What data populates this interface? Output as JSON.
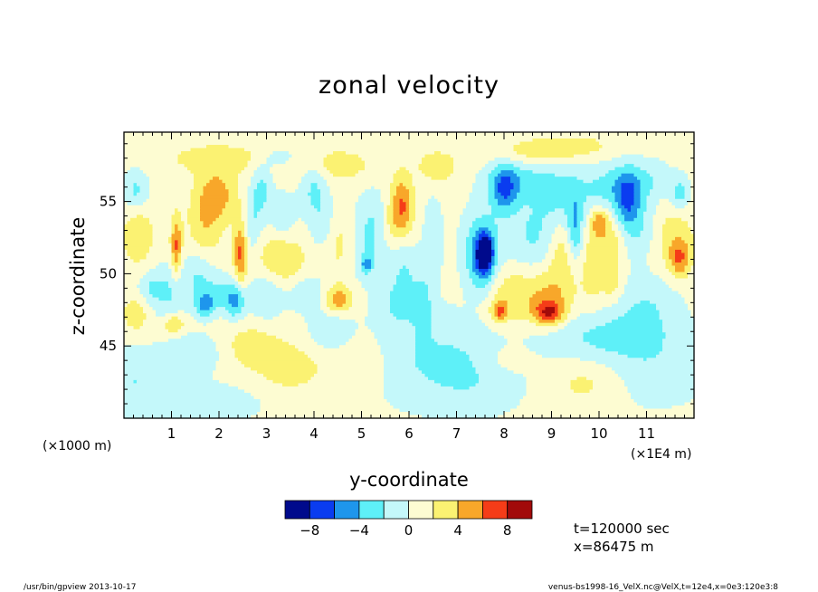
{
  "chart_data": {
    "type": "heatmap",
    "title": "zonal velocity",
    "xlabel": "y-coordinate",
    "ylabel": "z-coordinate",
    "x_unit_left": "(×1000 m)",
    "x_unit_right": "(×1E4 m)",
    "xlim": [
      0,
      12
    ],
    "ylim": [
      40,
      59.8
    ],
    "x_ticks": [
      1,
      2,
      3,
      4,
      5,
      6,
      7,
      8,
      9,
      10,
      11
    ],
    "x_tick_labels": [
      "1",
      "2",
      "3",
      "4",
      "5",
      "6",
      "7",
      "8",
      "9",
      "10",
      "11"
    ],
    "y_ticks": [
      45,
      50,
      55
    ],
    "y_tick_labels": [
      "45",
      "50",
      "55"
    ],
    "color_levels": [
      -10,
      -8,
      -6,
      -4,
      -2,
      0,
      2,
      4,
      6,
      8,
      10
    ],
    "colors": [
      "#000a8c",
      "#0a3cf0",
      "#1e96ec",
      "#5ef0f8",
      "#c4f8fa",
      "#fdfcd2",
      "#fbf272",
      "#f8a72a",
      "#f53c18",
      "#a20a0a"
    ],
    "colorbar_labels": [
      "−8",
      "−4",
      "0",
      "4",
      "8"
    ],
    "colorbar_label_values": [
      -8,
      -4,
      0,
      4,
      8
    ],
    "background_value": 0.8,
    "features": [
      {
        "y": 0.25,
        "z": 55.8,
        "v": -3.2,
        "sy": 0.18,
        "sz": 1.0
      },
      {
        "y": 0.3,
        "z": 52.6,
        "v": 3.2,
        "sy": 0.22,
        "sz": 1.3
      },
      {
        "y": 0.55,
        "z": 49.0,
        "v": -2.4,
        "sy": 0.2,
        "sz": 0.8
      },
      {
        "y": 0.25,
        "z": 47.2,
        "v": 2.6,
        "sy": 0.2,
        "sz": 0.9
      },
      {
        "y": 0.2,
        "z": 43.0,
        "v": -2.6,
        "sy": 0.45,
        "sz": 1.5
      },
      {
        "y": 1.1,
        "z": 51.8,
        "v": 5.6,
        "sy": 0.08,
        "sz": 1.5
      },
      {
        "y": 0.95,
        "z": 48.6,
        "v": -2.8,
        "sy": 0.25,
        "sz": 1.5
      },
      {
        "y": 1.05,
        "z": 46.5,
        "v": 4.2,
        "sy": 0.16,
        "sz": 0.5
      },
      {
        "y": 1.5,
        "z": 44.5,
        "v": -2.4,
        "sy": 0.4,
        "sz": 1.0
      },
      {
        "y": 1.95,
        "z": 55.5,
        "v": 4.2,
        "sy": 0.3,
        "sz": 1.3
      },
      {
        "y": 1.7,
        "z": 53.2,
        "v": 2.6,
        "sy": 0.25,
        "sz": 1.5
      },
      {
        "y": 2.45,
        "z": 51.5,
        "v": 5.6,
        "sy": 0.1,
        "sz": 1.6
      },
      {
        "y": 1.55,
        "z": 50.0,
        "v": -2.6,
        "sy": 0.25,
        "sz": 1.2
      },
      {
        "y": 1.7,
        "z": 47.8,
        "v": -4.4,
        "sy": 0.15,
        "sz": 0.6
      },
      {
        "y": 2.35,
        "z": 48.0,
        "v": -4.4,
        "sy": 0.14,
        "sz": 0.8
      },
      {
        "y": 2.05,
        "z": 48.6,
        "v": -3.0,
        "sy": 0.32,
        "sz": 0.9
      },
      {
        "y": 2.9,
        "z": 55.8,
        "v": -3.2,
        "sy": 0.15,
        "sz": 1.2
      },
      {
        "y": 2.7,
        "z": 53.5,
        "v": -2.6,
        "sy": 0.15,
        "sz": 1.5
      },
      {
        "y": 3.35,
        "z": 54.0,
        "v": -2.4,
        "sy": 0.2,
        "sz": 1.2
      },
      {
        "y": 3.3,
        "z": 51.0,
        "v": 3.4,
        "sy": 0.35,
        "sz": 1.2
      },
      {
        "y": 3.0,
        "z": 48.5,
        "v": -2.8,
        "sy": 0.25,
        "sz": 1.2
      },
      {
        "y": 2.7,
        "z": 45.0,
        "v": 2.4,
        "sy": 0.4,
        "sz": 1.0
      },
      {
        "y": 3.9,
        "z": 48.6,
        "v": -2.6,
        "sy": 0.3,
        "sz": 0.9
      },
      {
        "y": 4.0,
        "z": 56.0,
        "v": -3.2,
        "sy": 0.2,
        "sz": 1.5
      },
      {
        "y": 4.2,
        "z": 53.0,
        "v": -2.6,
        "sy": 0.2,
        "sz": 1.5
      },
      {
        "y": 4.5,
        "z": 52.0,
        "v": 2.4,
        "sy": 0.3,
        "sz": 1.5
      },
      {
        "y": 4.5,
        "z": 48.2,
        "v": 5.0,
        "sy": 0.22,
        "sz": 0.7
      },
      {
        "y": 4.35,
        "z": 46.0,
        "v": -2.6,
        "sy": 0.3,
        "sz": 1.0
      },
      {
        "y": 3.5,
        "z": 43.5,
        "v": 2.4,
        "sy": 0.5,
        "sz": 1.2
      },
      {
        "y": 4.4,
        "z": 57.5,
        "v": 2.4,
        "sy": 0.6,
        "sz": 0.8
      },
      {
        "y": 5.25,
        "z": 54.0,
        "v": -2.6,
        "sy": 0.25,
        "sz": 1.4
      },
      {
        "y": 5.1,
        "z": 51.5,
        "v": -2.6,
        "sy": 0.3,
        "sz": 1.5
      },
      {
        "y": 5.1,
        "z": 50.6,
        "v": -4.4,
        "sy": 0.08,
        "sz": 0.4
      },
      {
        "y": 5.85,
        "z": 55.0,
        "v": 4.6,
        "sy": 0.16,
        "sz": 1.3
      },
      {
        "y": 5.7,
        "z": 53.5,
        "v": 2.6,
        "sy": 0.25,
        "sz": 1.2
      },
      {
        "y": 5.9,
        "z": 50.5,
        "v": -2.6,
        "sy": 0.25,
        "sz": 1.4
      },
      {
        "y": 5.8,
        "z": 48.0,
        "v": -2.6,
        "sy": 0.25,
        "sz": 1.0
      },
      {
        "y": 6.6,
        "z": 57.4,
        "v": 2.6,
        "sy": 0.3,
        "sz": 0.8
      },
      {
        "y": 6.5,
        "z": 52.5,
        "v": -2.4,
        "sy": 0.15,
        "sz": 2.0
      },
      {
        "y": 6.3,
        "z": 48.0,
        "v": -2.4,
        "sy": 0.15,
        "sz": 1.5
      },
      {
        "y": 7.6,
        "z": 51.5,
        "v": -8.4,
        "sy": 0.1,
        "sz": 0.8
      },
      {
        "y": 7.55,
        "z": 51.0,
        "v": -5.2,
        "sy": 0.2,
        "sz": 1.5
      },
      {
        "y": 7.5,
        "z": 52.0,
        "v": -3.0,
        "sy": 0.3,
        "sz": 2.0
      },
      {
        "y": 7.9,
        "z": 47.4,
        "v": 5.0,
        "sy": 0.12,
        "sz": 0.5
      },
      {
        "y": 8.2,
        "z": 48.5,
        "v": 3.0,
        "sy": 0.4,
        "sz": 1.5
      },
      {
        "y": 8.95,
        "z": 47.3,
        "v": 6.2,
        "sy": 0.22,
        "sz": 0.6
      },
      {
        "y": 9.0,
        "z": 48.5,
        "v": 3.2,
        "sy": 0.35,
        "sz": 1.4
      },
      {
        "y": 8.3,
        "z": 56.5,
        "v": -3.2,
        "sy": 0.5,
        "sz": 1.0
      },
      {
        "y": 8.0,
        "z": 55.8,
        "v": -5.4,
        "sy": 0.2,
        "sz": 1.2
      },
      {
        "y": 8.6,
        "z": 52.5,
        "v": -3.0,
        "sy": 0.4,
        "sz": 2.0
      },
      {
        "y": 9.25,
        "z": 55.5,
        "v": -3.0,
        "sy": 0.4,
        "sz": 1.4
      },
      {
        "y": 9.5,
        "z": 53.0,
        "v": -4.6,
        "sy": 0.12,
        "sz": 1.5
      },
      {
        "y": 9.2,
        "z": 51.5,
        "v": 2.6,
        "sy": 0.2,
        "sz": 1.5
      },
      {
        "y": 9.9,
        "z": 50.5,
        "v": 2.4,
        "sy": 0.2,
        "sz": 2.0
      },
      {
        "y": 10.0,
        "z": 53.6,
        "v": 4.4,
        "sy": 0.12,
        "sz": 0.6
      },
      {
        "y": 10.25,
        "z": 52.4,
        "v": 2.6,
        "sy": 0.2,
        "sz": 1.2
      },
      {
        "y": 10.3,
        "z": 49.5,
        "v": 2.6,
        "sy": 0.15,
        "sz": 1.0
      },
      {
        "y": 10.2,
        "z": 56.0,
        "v": -3.0,
        "sy": 0.4,
        "sz": 1.2
      },
      {
        "y": 10.6,
        "z": 55.0,
        "v": -5.4,
        "sy": 0.2,
        "sz": 1.4
      },
      {
        "y": 10.9,
        "z": 53.0,
        "v": -2.8,
        "sy": 0.3,
        "sz": 1.5
      },
      {
        "y": 11.0,
        "z": 56.5,
        "v": -2.6,
        "sy": 0.4,
        "sz": 1.0
      },
      {
        "y": 11.7,
        "z": 55.5,
        "v": -3.4,
        "sy": 0.15,
        "sz": 0.8
      },
      {
        "y": 11.7,
        "z": 51.0,
        "v": 4.6,
        "sy": 0.15,
        "sz": 0.9
      },
      {
        "y": 11.5,
        "z": 52.5,
        "v": 2.6,
        "sy": 0.35,
        "sz": 1.5
      },
      {
        "y": 11.0,
        "z": 48.0,
        "v": -2.4,
        "sy": 0.5,
        "sz": 1.5
      },
      {
        "y": 8.6,
        "z": 58.4,
        "v": 2.2,
        "sy": 0.6,
        "sz": 0.6
      },
      {
        "y": 2.0,
        "z": 58.0,
        "v": 2.2,
        "sy": 0.8,
        "sz": 0.7
      },
      {
        "y": 3.3,
        "z": 58.0,
        "v": -2.2,
        "sy": 0.3,
        "sz": 0.6
      },
      {
        "y": 10.0,
        "z": 45.8,
        "v": -2.6,
        "sy": 1.0,
        "sz": 1.2
      },
      {
        "y": 9.8,
        "z": 42.5,
        "v": 2.4,
        "sy": 0.6,
        "sz": 1.2
      },
      {
        "y": 8.0,
        "z": 44.0,
        "v": 1.6,
        "sy": 0.4,
        "sz": 0.8
      },
      {
        "y": 7.4,
        "z": 43.0,
        "v": -2.4,
        "sy": 0.8,
        "sz": 2.0
      },
      {
        "y": 6.0,
        "z": 44.5,
        "v": -2.4,
        "sy": 1.0,
        "sz": 2.5
      },
      {
        "y": 5.0,
        "z": 44.0,
        "v": 2.0,
        "sy": 0.5,
        "sz": 1.5
      },
      {
        "y": 11.0,
        "z": 43.5,
        "v": -2.4,
        "sy": 1.0,
        "sz": 2.0
      },
      {
        "y": 1.5,
        "z": 41.0,
        "v": -2.4,
        "sy": 1.0,
        "sz": 1.0
      },
      {
        "y": 9.5,
        "z": 58.8,
        "v": 2.0,
        "sy": 0.6,
        "sz": 0.6
      }
    ]
  },
  "info": {
    "time": "t=120000 sec",
    "position": "x=86475 m"
  },
  "footer": {
    "left": "/usr/bin/gpview   2013-10-17",
    "right": "venus-bs1998-16_VelX.nc@VelX,t=12e4,x=0e3:120e3:8"
  }
}
